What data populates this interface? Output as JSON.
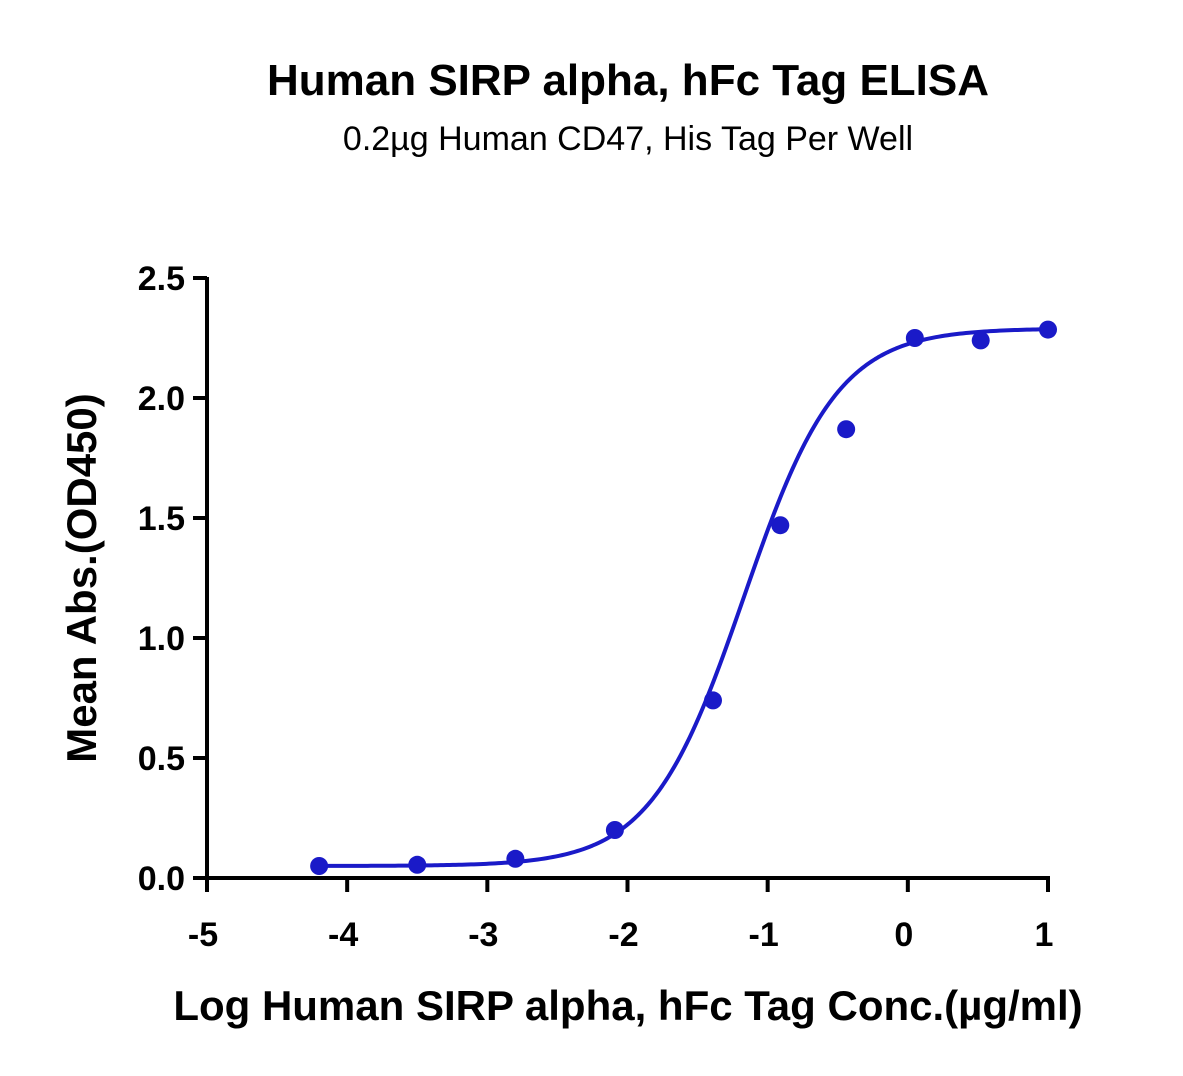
{
  "chart_data": {
    "type": "scatter",
    "title": "Human SIRP alpha, hFc Tag ELISA",
    "subtitle": "0.2µg Human CD47, His Tag Per Well",
    "xlabel": "Log Human SIRP alpha, hFc Tag Conc.(µg/ml)",
    "ylabel": "Mean Abs.(OD450)",
    "xlim": [
      -5,
      1
    ],
    "ylim": [
      0,
      2.5
    ],
    "xticks": [
      -5,
      -4,
      -3,
      -2,
      -1,
      0,
      1
    ],
    "yticks": [
      0,
      0.5,
      1.0,
      1.5,
      2.0,
      2.5
    ],
    "xtick_labels": [
      "-5",
      "-4",
      "-3",
      "-2",
      "-1",
      "0",
      "1"
    ],
    "ytick_labels": [
      "0.0",
      "0.5",
      "1.0",
      "1.5",
      "2.0",
      "2.5"
    ],
    "grid": false,
    "legend": "none",
    "series": [
      {
        "color": "#1a1ac8",
        "points": [
          {
            "x": -4.2,
            "y": 0.05
          },
          {
            "x": -3.5,
            "y": 0.055
          },
          {
            "x": -2.8,
            "y": 0.08
          },
          {
            "x": -2.09,
            "y": 0.2
          },
          {
            "x": -1.39,
            "y": 0.74
          },
          {
            "x": -0.91,
            "y": 1.47
          },
          {
            "x": -0.44,
            "y": 1.87
          },
          {
            "x": 0.05,
            "y": 2.25
          },
          {
            "x": 0.52,
            "y": 2.24
          },
          {
            "x": 1.0,
            "y": 2.285
          }
        ],
        "fit": {
          "model": "four-parameter logistic",
          "bottom": 0.05,
          "top": 2.29,
          "log_ec50": -1.17,
          "hill_slope": 1.3
        }
      }
    ]
  }
}
